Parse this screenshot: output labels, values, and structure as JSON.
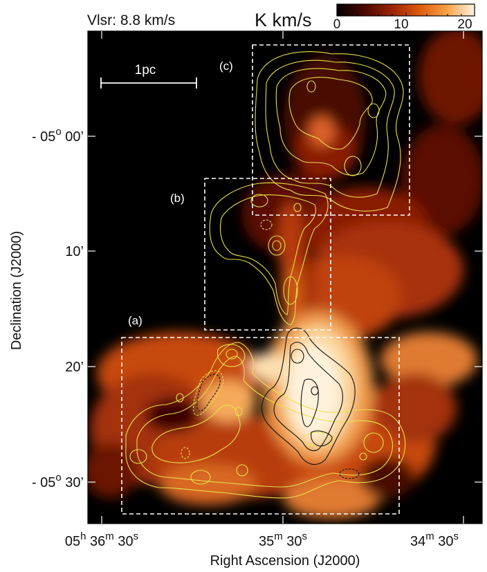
{
  "header": {
    "velocity_label": "Vlsr: 8.8 km/s",
    "colorbar_title": "K km/s",
    "colorbar_ticks": [
      "0",
      "10",
      "20"
    ]
  },
  "axes": {
    "ylabel": "Declination (J2000)",
    "xlabel": "Right Ascension (J2000)",
    "yticks": [
      {
        "deg": "- 05",
        "sup": "o",
        "min": " 00’"
      },
      {
        "deg": "",
        "sup": "",
        "min": "10’"
      },
      {
        "deg": "",
        "sup": "",
        "min": "20’"
      },
      {
        "deg": "- 05",
        "sup": "o",
        "min": " 30’"
      }
    ],
    "xticks": [
      {
        "a": "05",
        "as": "h",
        "b": " 36",
        "bs": "m",
        "c": " 30",
        "cs": "s"
      },
      {
        "a": "",
        "as": "",
        "b": "35",
        "bs": "m",
        "c": " 30",
        "cs": "s"
      },
      {
        "a": "",
        "as": "",
        "b": "34",
        "bs": "m",
        "c": " 30",
        "cs": "s"
      }
    ]
  },
  "annotations": {
    "scalebar_label": "1pc",
    "region_a": "(a)",
    "region_b": "(b)",
    "region_c": "(c)"
  },
  "colors": {
    "contour": "#e8e04a",
    "contour_core": "#111111",
    "box": "#ffffff",
    "cmap": [
      "#000000",
      "#5a0a00",
      "#a82a04",
      "#e06a12",
      "#f7b04a",
      "#fde9c0",
      "#ffffff"
    ]
  }
}
